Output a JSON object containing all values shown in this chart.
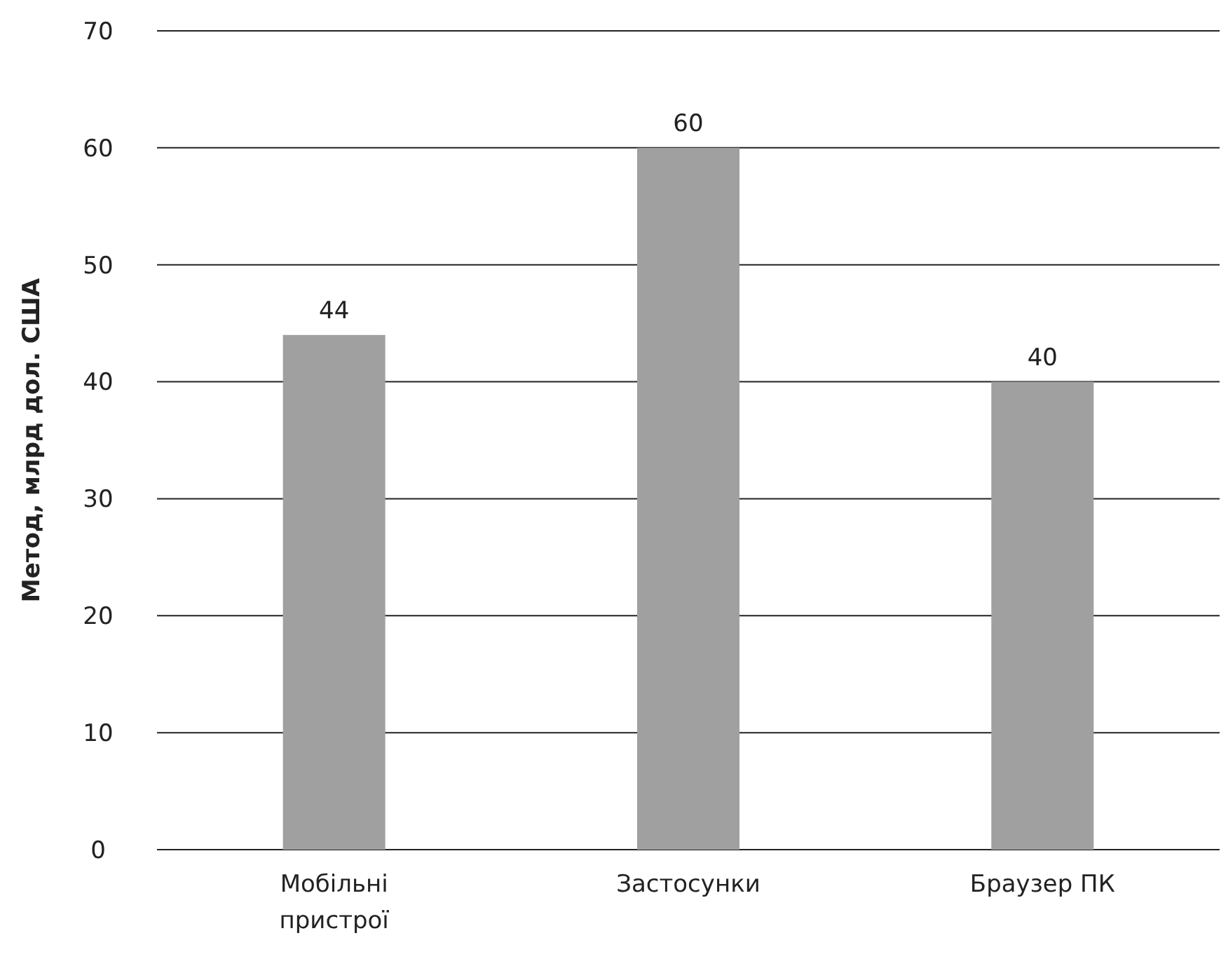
{
  "chart_data": {
    "type": "bar",
    "ylabel": "Метод, млрд дол. США",
    "categories": [
      "Мобільні пристрої",
      "Застосунки",
      "Браузер ПК"
    ],
    "values": [
      44,
      60,
      40
    ],
    "color": "#a0a0a0",
    "ylim": [
      0,
      70
    ],
    "yticks": [
      0,
      10,
      20,
      30,
      40,
      50,
      60,
      70
    ],
    "grid": "y",
    "data_labels": true
  }
}
